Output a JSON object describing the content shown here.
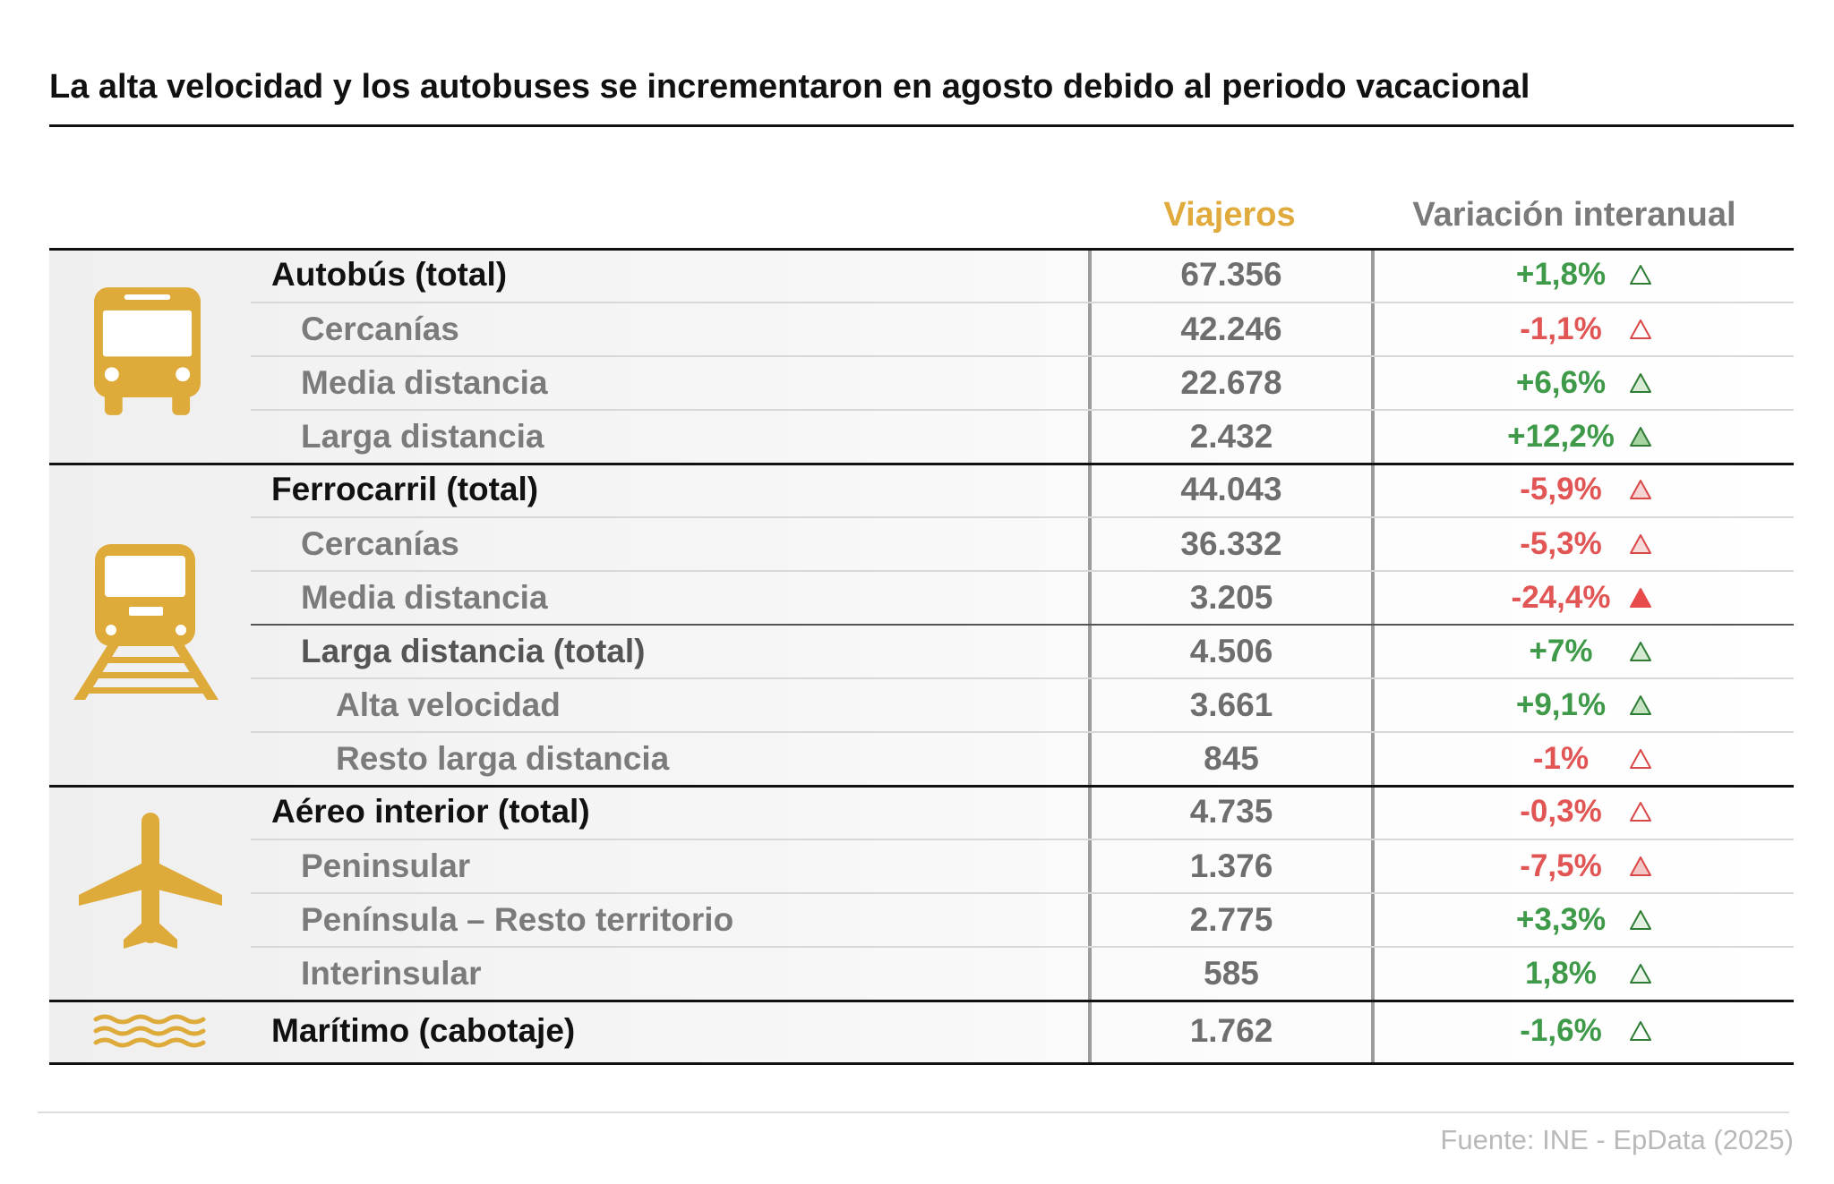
{
  "title": "La alta velocidad y los autobuses se incrementaron en agosto debido al periodo vacacional",
  "columns": {
    "viajeros": "Viajeros",
    "variacion": "Variación interanual"
  },
  "colors": {
    "accent": "#deab3b",
    "viajeros_header": "#e0aa3c",
    "positive": "#3e9a48",
    "negative": "#e25555"
  },
  "groups": [
    {
      "icon": "bus-icon",
      "rows": [
        {
          "label": "Autobús (total)",
          "viajeros": "67.356",
          "variacion": "+1,8%",
          "text_color": "#3e9a48",
          "marker": {
            "fill": "#ffffff",
            "stroke": "#2f7d35"
          }
        },
        {
          "label": "Cercanías",
          "viajeros": "42.246",
          "variacion": "-1,1%",
          "text_color": "#e25555",
          "marker": {
            "fill": "#ffffff",
            "stroke": "#d94848"
          }
        },
        {
          "label": "Media distancia",
          "viajeros": "22.678",
          "variacion": "+6,6%",
          "text_color": "#3e9a48",
          "marker": {
            "fill": "#d7ebd5",
            "stroke": "#2f7d35"
          }
        },
        {
          "label": "Larga distancia",
          "viajeros": "2.432",
          "variacion": "+12,2%",
          "text_color": "#3e9a48",
          "marker": {
            "fill": "#a6d3a0",
            "stroke": "#2f7d35"
          }
        }
      ]
    },
    {
      "icon": "train-icon",
      "rows": [
        {
          "label": "Ferrocarril (total)",
          "viajeros": "44.043",
          "variacion": "-5,9%",
          "text_color": "#e25555",
          "marker": {
            "fill": "#f7d4d4",
            "stroke": "#d94848"
          }
        },
        {
          "label": "Cercanías",
          "viajeros": "36.332",
          "variacion": "-5,3%",
          "text_color": "#e25555",
          "marker": {
            "fill": "#f8dada",
            "stroke": "#d94848"
          }
        },
        {
          "label": "Media distancia",
          "viajeros": "3.205",
          "variacion": "-24,4%",
          "text_color": "#e25555",
          "marker": {
            "fill": "#e84b4b",
            "stroke": "#e84b4b"
          }
        },
        {
          "label": "Larga distancia (total)",
          "viajeros": "4.506",
          "variacion": "+7%",
          "text_color": "#3e9a48",
          "marker": {
            "fill": "#d4ead1",
            "stroke": "#2f7d35"
          }
        },
        {
          "label": "Alta velocidad",
          "viajeros": "3.661",
          "variacion": "+9,1%",
          "text_color": "#3e9a48",
          "marker": {
            "fill": "#c5e3c1",
            "stroke": "#2f7d35"
          }
        },
        {
          "label": "Resto larga distancia",
          "viajeros": "845",
          "variacion": "-1%",
          "text_color": "#e25555",
          "marker": {
            "fill": "#ffffff",
            "stroke": "#d94848"
          }
        }
      ]
    },
    {
      "icon": "airplane-icon",
      "rows": [
        {
          "label": "Aéreo interior (total)",
          "viajeros": "4.735",
          "variacion": "-0,3%",
          "text_color": "#e25555",
          "marker": {
            "fill": "#ffffff",
            "stroke": "#d94848"
          }
        },
        {
          "label": "Peninsular",
          "viajeros": "1.376",
          "variacion": "-7,5%",
          "text_color": "#e25555",
          "marker": {
            "fill": "#f4c7c7",
            "stroke": "#d94848"
          }
        },
        {
          "label": "Península – Resto territorio",
          "viajeros": "2.775",
          "variacion": "+3,3%",
          "text_color": "#3e9a48",
          "marker": {
            "fill": "#e3f1e1",
            "stroke": "#2f7d35"
          }
        },
        {
          "label": "Interinsular",
          "viajeros": "585",
          "variacion": "1,8%",
          "text_color": "#3e9a48",
          "marker": {
            "fill": "#ecf5eb",
            "stroke": "#2f7d35"
          }
        }
      ]
    },
    {
      "icon": "waves-icon",
      "rows": [
        {
          "label": "Marítimo (cabotaje)",
          "viajeros": "1.762",
          "variacion": "-1,6%",
          "text_color": "#3e9a48",
          "marker": {
            "fill": "#ffffff",
            "stroke": "#2f7d35"
          }
        }
      ]
    }
  ],
  "source": "Fuente: INE - EpData (2025)"
}
